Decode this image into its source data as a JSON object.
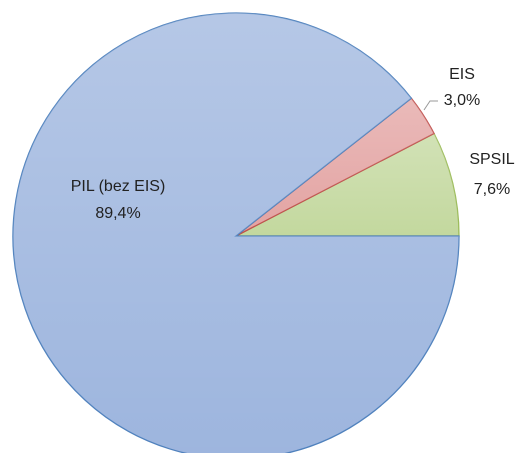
{
  "chart_data": {
    "type": "pie",
    "categories": [
      "SPSIL",
      "EIS",
      "PIL (bez EIS)"
    ],
    "values": [
      7.6,
      3.0,
      89.4
    ],
    "value_labels": [
      "7,6%",
      "3,0%",
      "89,4%"
    ],
    "colors": [
      "#c3d89e",
      "#e3a3a2",
      "#9db5de"
    ],
    "stroke_colors": [
      "#9bbb59",
      "#c0504d",
      "#4f81bd"
    ]
  }
}
